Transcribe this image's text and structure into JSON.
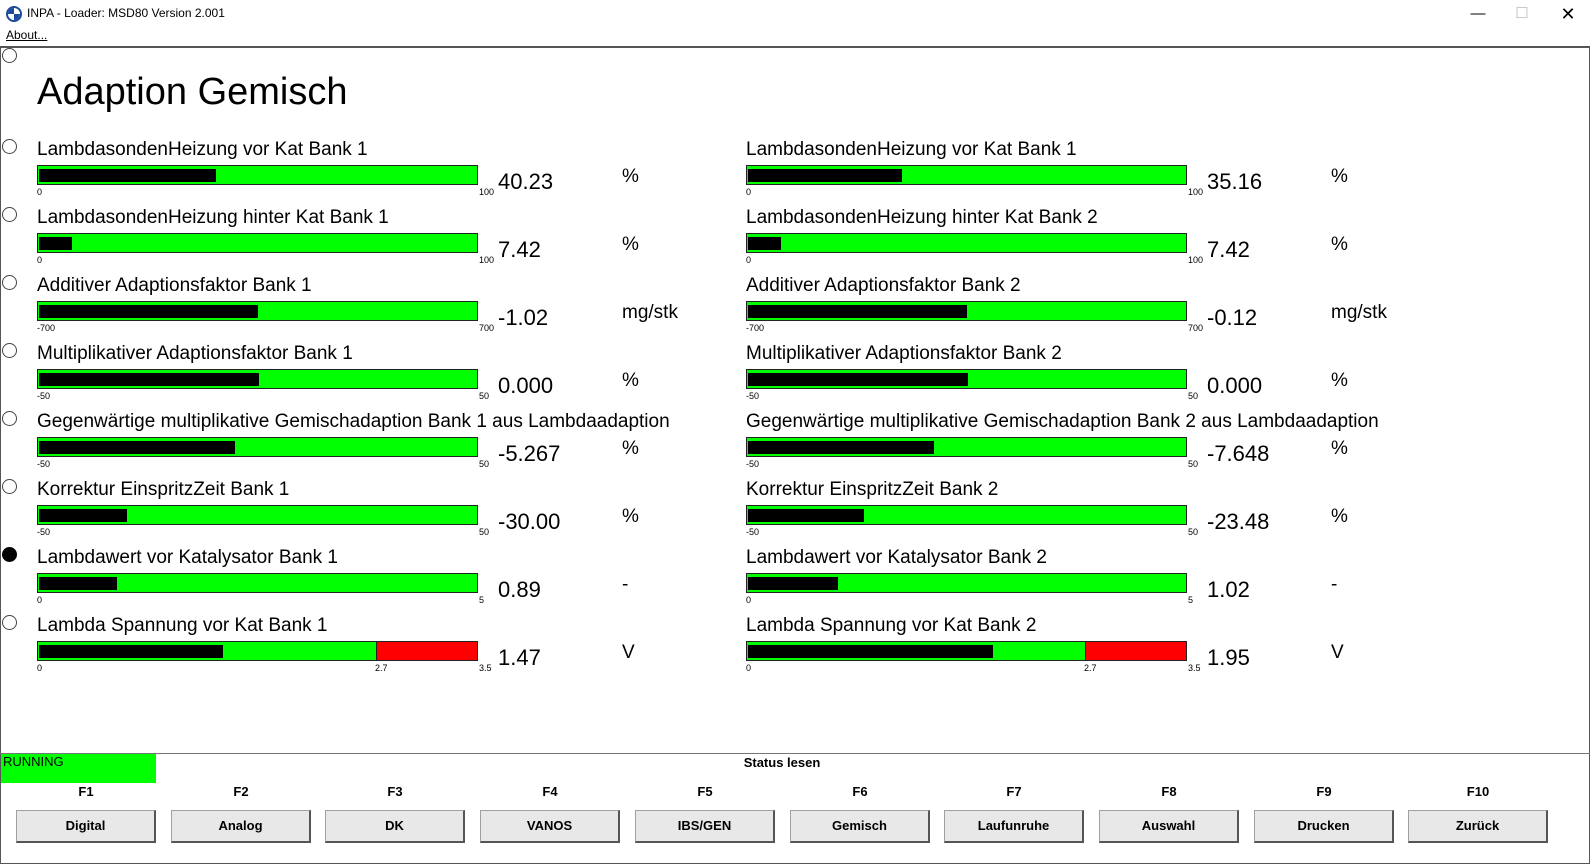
{
  "window": {
    "title": "INPA - Loader:  MSD80 Version 2.001",
    "minimize": "—",
    "maximize": "☐",
    "close": "✕"
  },
  "menu": {
    "about": "About..."
  },
  "page": {
    "title": "Adaption Gemisch"
  },
  "rows": [
    {
      "selected": false,
      "left": {
        "label": "LambdasondenHeizung vor Kat Bank 1",
        "value": "40.23",
        "unit": "%",
        "min": 0,
        "max": 100,
        "scale_min": "0",
        "scale_max": "100",
        "level": 40.23
      },
      "right": {
        "label": "LambdasondenHeizung vor Kat Bank 1",
        "value": "35.16",
        "unit": "%",
        "min": 0,
        "max": 100,
        "scale_min": "0",
        "scale_max": "100",
        "level": 35.16
      }
    },
    {
      "selected": false,
      "left": {
        "label": "LambdasondenHeizung hinter Kat Bank 1",
        "value": "7.42",
        "unit": "%",
        "min": 0,
        "max": 100,
        "scale_min": "0",
        "scale_max": "100",
        "level": 7.42
      },
      "right": {
        "label": "LambdasondenHeizung hinter Kat Bank 2",
        "value": "7.42",
        "unit": "%",
        "min": 0,
        "max": 100,
        "scale_min": "0",
        "scale_max": "100",
        "level": 7.42
      }
    },
    {
      "selected": false,
      "left": {
        "label": "Additiver Adaptionsfaktor Bank 1",
        "value": "-1.02",
        "unit": "mg/stk",
        "min": -700,
        "max": 700,
        "scale_min": "-700",
        "scale_max": "700",
        "level": -1.02
      },
      "right": {
        "label": "Additiver Adaptionsfaktor Bank 2",
        "value": "-0.12",
        "unit": "mg/stk",
        "min": -700,
        "max": 700,
        "scale_min": "-700",
        "scale_max": "700",
        "level": -0.12
      }
    },
    {
      "selected": false,
      "left": {
        "label": "Multiplikativer Adaptionsfaktor Bank 1",
        "value": "0.000",
        "unit": "%",
        "min": -50,
        "max": 50,
        "scale_min": "-50",
        "scale_max": "50",
        "level": 0
      },
      "right": {
        "label": "Multiplikativer Adaptionsfaktor Bank 2",
        "value": "0.000",
        "unit": "%",
        "min": -50,
        "max": 50,
        "scale_min": "-50",
        "scale_max": "50",
        "level": 0
      }
    },
    {
      "selected": false,
      "left": {
        "label": "Gegenwärtige multiplikative Gemischadaption Bank 1 aus Lambdaadaption",
        "value": "-5.267",
        "unit": "%",
        "min": -50,
        "max": 50,
        "scale_min": "-50",
        "scale_max": "50",
        "level": -5.267
      },
      "right": {
        "label": "Gegenwärtige multiplikative Gemischadaption Bank 2 aus Lambdaadaption",
        "value": "-7.648",
        "unit": "%",
        "min": -50,
        "max": 50,
        "scale_min": "-50",
        "scale_max": "50",
        "level": -7.648
      }
    },
    {
      "selected": false,
      "left": {
        "label": "Korrektur EinspritzZeit Bank 1",
        "value": "-30.00",
        "unit": "%",
        "min": -50,
        "max": 50,
        "scale_min": "-50",
        "scale_max": "50",
        "level": -30
      },
      "right": {
        "label": "Korrektur EinspritzZeit Bank 2",
        "value": "-23.48",
        "unit": "%",
        "min": -50,
        "max": 50,
        "scale_min": "-50",
        "scale_max": "50",
        "level": -23.48
      }
    },
    {
      "selected": true,
      "left": {
        "label": "Lambdawert vor Katalysator Bank 1",
        "value": "0.89",
        "unit": "-",
        "min": 0,
        "max": 5,
        "scale_min": "0",
        "scale_max": "5",
        "level": 0.89
      },
      "right": {
        "label": "Lambdawert vor Katalysator Bank 2",
        "value": "1.02",
        "unit": "-",
        "min": 0,
        "max": 5,
        "scale_min": "0",
        "scale_max": "5",
        "level": 1.02
      }
    },
    {
      "selected": false,
      "left": {
        "label": "Lambda Spannung vor Kat Bank 1",
        "value": "1.47",
        "unit": "V",
        "min": 0,
        "max": 3.5,
        "scale_min": "0",
        "scale_max": "3.5",
        "threshold": 2.7,
        "threshold_label": "2.7",
        "level": 1.47
      },
      "right": {
        "label": "Lambda Spannung vor Kat Bank 2",
        "value": "1.95",
        "unit": "V",
        "min": 0,
        "max": 3.5,
        "scale_min": "0",
        "scale_max": "3.5",
        "threshold": 2.7,
        "threshold_label": "2.7",
        "level": 1.95
      }
    }
  ],
  "status": {
    "running": "RUNNING",
    "title": "Status lesen"
  },
  "function_keys": [
    {
      "key": "F1",
      "label": "Digital"
    },
    {
      "key": "F2",
      "label": "Analog"
    },
    {
      "key": "F3",
      "label": "DK"
    },
    {
      "key": "F4",
      "label": "VANOS"
    },
    {
      "key": "F5",
      "label": "IBS/GEN"
    },
    {
      "key": "F6",
      "label": "Gemisch"
    },
    {
      "key": "F7",
      "label": "Laufunruhe"
    },
    {
      "key": "F8",
      "label": "Auswahl"
    },
    {
      "key": "F9",
      "label": "Drucken"
    },
    {
      "key": "F10",
      "label": "Zurück"
    }
  ],
  "colors": {
    "bar_bg": "#00ff00",
    "bar_fill": "#000000",
    "bar_warn": "#ff0000",
    "running_bg": "#00ff00"
  }
}
